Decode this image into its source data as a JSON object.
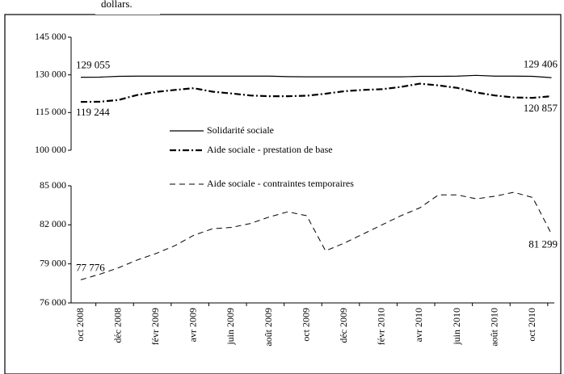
{
  "chart_data": {
    "type": "line",
    "title": "dollars.",
    "categories": [
      "oct 2008",
      null,
      "déc 2008",
      null,
      "févr 2009",
      null,
      "avr 2009",
      null,
      "juin 2009",
      null,
      "août 2009",
      null,
      "oct 2009",
      null,
      "déc 2009",
      null,
      "févr 2010",
      null,
      "avr 2010",
      null,
      "juin 2010",
      null,
      "août 2010",
      null,
      "oct 2010",
      null
    ],
    "panels": [
      {
        "ylim": [
          100000,
          145000
        ],
        "yticks": [
          {
            "value": 100000,
            "label": "100 000"
          },
          {
            "value": 115000,
            "label": "115 000"
          },
          {
            "value": 130000,
            "label": "130 000"
          },
          {
            "value": 145000,
            "label": "145 000"
          }
        ]
      },
      {
        "ylim": [
          76000,
          85000
        ],
        "yticks": [
          {
            "value": 76000,
            "label": "76 000"
          },
          {
            "value": 79000,
            "label": "79 000"
          },
          {
            "value": 82000,
            "label": "82 000"
          },
          {
            "value": 85000,
            "label": "85 000"
          }
        ]
      }
    ],
    "series": [
      {
        "name": "Solidarité sociale",
        "color": "#000000",
        "style": "solid",
        "panel": 0,
        "values": [
          129055,
          129100,
          129400,
          129500,
          129500,
          129500,
          129500,
          129500,
          129500,
          129500,
          129500,
          129300,
          129200,
          129200,
          129200,
          129200,
          129200,
          129200,
          129400,
          129400,
          129500,
          129800,
          129500,
          129500,
          129406,
          128900
        ],
        "value_labels": [
          "129 055",
          null,
          null,
          null,
          null,
          null,
          null,
          null,
          null,
          null,
          null,
          null,
          null,
          null,
          null,
          null,
          null,
          null,
          null,
          null,
          null,
          null,
          null,
          null,
          "129 406",
          null
        ]
      },
      {
        "name": "Aide sociale - prestation de base",
        "color": "#000000",
        "style": "dashdot",
        "panel": 0,
        "values": [
          119244,
          119300,
          120000,
          122000,
          123200,
          124000,
          124700,
          123300,
          122600,
          121800,
          121500,
          121500,
          121700,
          122500,
          123500,
          124000,
          124300,
          125200,
          126500,
          125800,
          124800,
          123000,
          121800,
          121000,
          120857,
          121500
        ],
        "value_labels": [
          "119 244",
          null,
          null,
          null,
          null,
          null,
          null,
          null,
          null,
          null,
          null,
          null,
          null,
          null,
          null,
          null,
          null,
          null,
          null,
          null,
          null,
          null,
          null,
          null,
          "120 857",
          null
        ]
      },
      {
        "name": "Aide sociale - contraintes temporaires",
        "color": "#000000",
        "style": "dashed",
        "panel": 1,
        "values": [
          77776,
          78200,
          78700,
          79300,
          79800,
          80400,
          81200,
          81700,
          81800,
          82100,
          82600,
          83000,
          82700,
          80000,
          80600,
          81300,
          82000,
          82700,
          83300,
          84300,
          84300,
          84000,
          84200,
          84500,
          84100,
          81299
        ],
        "value_labels": [
          "77 776",
          null,
          null,
          null,
          null,
          null,
          null,
          null,
          null,
          null,
          null,
          null,
          null,
          null,
          null,
          null,
          null,
          null,
          null,
          null,
          null,
          null,
          null,
          null,
          null,
          "81 299"
        ]
      }
    ]
  }
}
